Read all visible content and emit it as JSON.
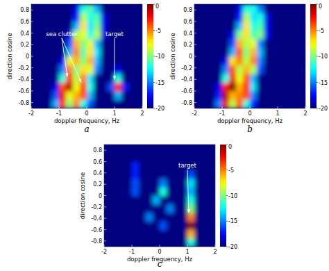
{
  "chart_data": [
    {
      "type": "heatmap",
      "title": "a",
      "x_label": "doppler frequency, Hz",
      "y_label": "direction cosine",
      "xlim": [
        -2,
        2
      ],
      "xticks": [
        -2,
        -1,
        0,
        1,
        2
      ],
      "ylim": [
        -0.9,
        0.9
      ],
      "yticks": [
        -0.8,
        -0.6,
        -0.4,
        -0.2,
        0,
        0.2,
        0.4,
        0.6,
        0.8
      ],
      "x_edges": [
        -2,
        -1.75,
        -1.5,
        -1.25,
        -1,
        -0.75,
        -0.5,
        -0.25,
        0,
        0.25,
        0.5,
        0.75,
        1,
        1.25,
        1.5,
        1.75,
        2
      ],
      "y_edges": [
        -0.9,
        -0.75,
        -0.6,
        -0.45,
        -0.3,
        -0.15,
        0,
        0.15,
        0.3,
        0.45,
        0.6,
        0.75,
        0.9
      ],
      "cells": [
        [
          -20,
          -20,
          -20,
          -14,
          -3,
          -10,
          -5,
          -12,
          -16,
          -20,
          -20,
          -20,
          -20,
          -20,
          -20,
          -20
        ],
        [
          -20,
          -20,
          -20,
          -16,
          -2,
          -8,
          -6,
          -4,
          -14,
          -20,
          -20,
          -20,
          -14,
          -20,
          -20,
          -20
        ],
        [
          -20,
          -20,
          -20,
          -18,
          -4,
          -1,
          -8,
          -3,
          -12,
          -20,
          -20,
          -16,
          -3,
          -17,
          -20,
          -20
        ],
        [
          -20,
          -20,
          -20,
          -20,
          -12,
          -3,
          -9,
          -5,
          -13,
          -20,
          -20,
          -20,
          -12,
          -20,
          -20,
          -20
        ],
        [
          -20,
          -20,
          -20,
          -20,
          -15,
          -5,
          -10,
          -7,
          -8,
          -15,
          -20,
          -20,
          -18,
          -20,
          -20,
          -20
        ],
        [
          -20,
          -20,
          -20,
          -20,
          -18,
          -8,
          -6,
          -10,
          -6,
          -14,
          -20,
          -20,
          -20,
          -20,
          -20,
          -20
        ],
        [
          -20,
          -20,
          -20,
          -20,
          -20,
          -14,
          -5,
          -11,
          -7,
          -13,
          -20,
          -20,
          -20,
          -20,
          -20,
          -20
        ],
        [
          -20,
          -20,
          -20,
          -20,
          -20,
          -16,
          -6,
          -10,
          -8,
          -14,
          -20,
          -20,
          -20,
          -20,
          -20,
          -20
        ],
        [
          -20,
          -20,
          -20,
          -20,
          -20,
          -18,
          -9,
          -8,
          -12,
          -9,
          -18,
          -20,
          -20,
          -20,
          -20,
          -20
        ],
        [
          -20,
          -20,
          -20,
          -20,
          -20,
          -20,
          -14,
          -7,
          -13,
          -10,
          -18,
          -20,
          -20,
          -20,
          -20,
          -20
        ],
        [
          -20,
          -20,
          -20,
          -20,
          -20,
          -20,
          -17,
          -9,
          -12,
          -11,
          -18,
          -20,
          -20,
          -20,
          -20,
          -20
        ],
        [
          -20,
          -20,
          -20,
          -20,
          -20,
          -20,
          -18,
          -12,
          -11,
          -14,
          -20,
          -20,
          -20,
          -20,
          -20,
          -20
        ]
      ],
      "colorbar_range": [
        -20,
        0
      ],
      "colorbar_ticks": [
        0,
        -5,
        -10,
        -15,
        -20
      ],
      "annotations": [
        {
          "text": "sea clutter",
          "x": -0.9,
          "y": 0.35,
          "arrows": [
            [
              -0.7,
              -0.35
            ],
            [
              -0.2,
              -0.45
            ]
          ]
        },
        {
          "text": "target",
          "x": 1.0,
          "y": 0.35,
          "arrows": [
            [
              1.0,
              -0.4
            ]
          ]
        }
      ]
    },
    {
      "type": "heatmap",
      "title": "b",
      "x_label": "doppler frequency, Hz",
      "y_label": "direction cosine",
      "xlim": [
        -2,
        2
      ],
      "xticks": [
        -2,
        -1,
        0,
        1,
        2
      ],
      "ylim": [
        -0.9,
        0.9
      ],
      "yticks": [
        -0.8,
        -0.6,
        -0.4,
        -0.2,
        0,
        0.2,
        0.4,
        0.6,
        0.8
      ],
      "x_edges": [
        -2,
        -1.75,
        -1.5,
        -1.25,
        -1,
        -0.75,
        -0.5,
        -0.25,
        0,
        0.25,
        0.5,
        0.75,
        1,
        1.25,
        1.5,
        1.75,
        2
      ],
      "y_edges": [
        -0.9,
        -0.75,
        -0.6,
        -0.45,
        -0.3,
        -0.15,
        0,
        0.15,
        0.3,
        0.45,
        0.6,
        0.75,
        0.9
      ],
      "cells": [
        [
          -20,
          -20,
          -20,
          -15,
          -2,
          -9,
          -4,
          -12,
          -17,
          -20,
          -20,
          -20,
          -20,
          -20,
          -20,
          -20
        ],
        [
          -20,
          -20,
          -20,
          -17,
          -1,
          -6,
          -5,
          -4,
          -15,
          -20,
          -20,
          -20,
          -20,
          -20,
          -20,
          -20
        ],
        [
          -20,
          -20,
          -20,
          -18,
          -3,
          0,
          -6,
          -3,
          -13,
          -20,
          -20,
          -20,
          -20,
          -20,
          -20,
          -20
        ],
        [
          -20,
          -20,
          -20,
          -20,
          -12,
          -2,
          -8,
          -4,
          -14,
          -20,
          -20,
          -20,
          -20,
          -20,
          -20,
          -20
        ],
        [
          -20,
          -20,
          -20,
          -20,
          -15,
          -4,
          -9,
          -6,
          -9,
          -16,
          -20,
          -20,
          -20,
          -20,
          -20,
          -20
        ],
        [
          -20,
          -20,
          -20,
          -20,
          -18,
          -7,
          -5,
          -9,
          -5,
          -15,
          -20,
          -20,
          -20,
          -20,
          -20,
          -20
        ],
        [
          -20,
          -20,
          -20,
          -20,
          -20,
          -14,
          -4,
          -10,
          -6,
          -14,
          -20,
          -20,
          -20,
          -20,
          -20,
          -20
        ],
        [
          -20,
          -20,
          -20,
          -20,
          -20,
          -16,
          -6,
          -9,
          -8,
          -15,
          -20,
          -20,
          -20,
          -20,
          -20,
          -20
        ],
        [
          -20,
          -20,
          -20,
          -20,
          -20,
          -18,
          -10,
          -7,
          -11,
          -10,
          -18,
          -20,
          -20,
          -20,
          -20,
          -20
        ],
        [
          -20,
          -20,
          -20,
          -20,
          -20,
          -20,
          -14,
          -7,
          -12,
          -11,
          -18,
          -20,
          -20,
          -20,
          -20,
          -20
        ],
        [
          -20,
          -20,
          -20,
          -20,
          -20,
          -20,
          -17,
          -9,
          -13,
          -12,
          -18,
          -20,
          -20,
          -20,
          -20,
          -20
        ],
        [
          -20,
          -20,
          -20,
          -20,
          -20,
          -20,
          -18,
          -12,
          -12,
          -15,
          -20,
          -20,
          -20,
          -20,
          -20,
          -20
        ]
      ],
      "colorbar_range": [
        -20,
        0
      ],
      "colorbar_ticks": [
        0,
        -5,
        -10,
        -15,
        -20
      ],
      "annotations": []
    },
    {
      "type": "heatmap",
      "title": "c",
      "x_label": "doppler frequency, Hz",
      "y_label": "direction cosine",
      "xlim": [
        -2,
        2
      ],
      "xticks": [
        -2,
        -1,
        0,
        1,
        2
      ],
      "ylim": [
        -0.9,
        0.9
      ],
      "yticks": [
        -0.8,
        -0.6,
        -0.4,
        -0.2,
        0,
        0.2,
        0.4,
        0.6,
        0.8
      ],
      "x_edges": [
        -2,
        -1.75,
        -1.5,
        -1.25,
        -1,
        -0.75,
        -0.5,
        -0.25,
        0,
        0.25,
        0.5,
        0.75,
        1,
        1.25,
        1.5,
        1.75,
        2
      ],
      "y_edges": [
        -0.9,
        -0.75,
        -0.6,
        -0.45,
        -0.3,
        -0.15,
        0,
        0.15,
        0.3,
        0.45,
        0.6,
        0.75,
        0.9
      ],
      "cells": [
        [
          -20,
          -20,
          -20,
          -20,
          -20,
          -20,
          -20,
          -20,
          -20,
          -20,
          -20,
          -20,
          -12,
          -20,
          -20,
          -20
        ],
        [
          -20,
          -20,
          -20,
          -20,
          -20,
          -20,
          -20,
          -20,
          -20,
          -20,
          -20,
          -20,
          -6,
          -20,
          -20,
          -20
        ],
        [
          -20,
          -20,
          -20,
          -20,
          -20,
          -20,
          -20,
          -20,
          -16,
          -20,
          -20,
          -20,
          0,
          -20,
          -20,
          -20
        ],
        [
          -20,
          -20,
          -20,
          -20,
          -20,
          -20,
          -15,
          -20,
          -20,
          -20,
          -20,
          -20,
          -5,
          -20,
          -20,
          -20
        ],
        [
          -20,
          -20,
          -20,
          -20,
          -20,
          -20,
          -20,
          -20,
          -20,
          -15,
          -20,
          -20,
          -10,
          -20,
          -20,
          -20
        ],
        [
          -20,
          -20,
          -20,
          -20,
          -20,
          -20,
          -20,
          -14,
          -20,
          -20,
          -20,
          -20,
          -12,
          -20,
          -20,
          -20
        ],
        [
          -20,
          -20,
          -20,
          -20,
          -16,
          -20,
          -20,
          -20,
          -12,
          -20,
          -20,
          -20,
          -14,
          -20,
          -20,
          -20
        ],
        [
          -20,
          -20,
          -20,
          -20,
          -16,
          -20,
          -20,
          -20,
          -15,
          -20,
          -20,
          -20,
          -13,
          -20,
          -20,
          -20
        ],
        [
          -20,
          -20,
          -20,
          -20,
          -17,
          -20,
          -20,
          -20,
          -20,
          -20,
          -20,
          -20,
          -16,
          -20,
          -20,
          -20
        ],
        [
          -20,
          -20,
          -20,
          -20,
          -17,
          -20,
          -20,
          -20,
          -20,
          -20,
          -20,
          -20,
          -20,
          -20,
          -20,
          -20
        ],
        [
          -20,
          -20,
          -20,
          -20,
          -20,
          -20,
          -20,
          -20,
          -20,
          -20,
          -20,
          -20,
          -20,
          -20,
          -20,
          -20
        ],
        [
          -20,
          -20,
          -20,
          -20,
          -20,
          -20,
          -20,
          -20,
          -20,
          -20,
          -20,
          -20,
          -20,
          -20,
          -20,
          -20
        ]
      ],
      "colorbar_range": [
        -20,
        0
      ],
      "colorbar_ticks": [
        0,
        -5,
        -10,
        -15,
        -20
      ],
      "annotations": [
        {
          "text": "target",
          "x": 1.0,
          "y": 0.5,
          "arrows": [
            [
              1.05,
              -0.3
            ]
          ]
        }
      ]
    }
  ]
}
